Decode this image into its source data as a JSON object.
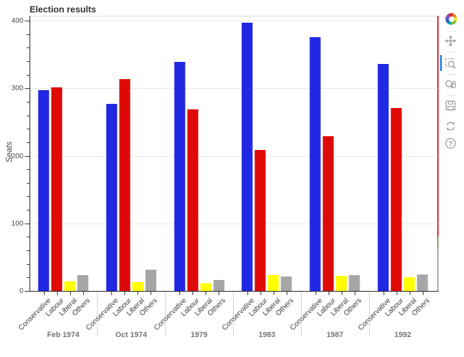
{
  "title": "Election results",
  "y_axis": {
    "label": "Seats",
    "ticks": [
      0,
      100,
      200,
      300,
      400
    ],
    "minor_tick_step": 20
  },
  "x_axis": {
    "groups": [
      "Feb 1974",
      "Oct 1974",
      "1979",
      "1983",
      "1987",
      "1992"
    ],
    "categories": [
      "Conservative",
      "Labour",
      "Liberal",
      "Others"
    ]
  },
  "chart_data": {
    "type": "bar",
    "title": "Election results",
    "xlabel": "",
    "ylabel": "Seats",
    "ylim": [
      0,
      407
    ],
    "grid": true,
    "legend": false,
    "groups": [
      "Feb 1974",
      "Oct 1974",
      "1979",
      "1983",
      "1987",
      "1992"
    ],
    "categories": [
      "Conservative",
      "Labour",
      "Liberal",
      "Others"
    ],
    "series": [
      {
        "name": "Conservative",
        "color": "#2128e2",
        "values": [
          297,
          277,
          339,
          397,
          376,
          336
        ]
      },
      {
        "name": "Labour",
        "color": "#de0a08",
        "values": [
          301,
          313,
          269,
          209,
          229,
          271
        ]
      },
      {
        "name": "Liberal",
        "color": "#ffff00",
        "values": [
          14,
          13,
          11,
          23,
          22,
          20
        ]
      },
      {
        "name": "Others",
        "color": "#a6a6a6",
        "values": [
          23,
          32,
          16,
          21,
          23,
          24
        ]
      }
    ]
  },
  "toolbar": {
    "logo": "bokeh-logo",
    "tools": [
      "pan",
      "box-zoom",
      "wheel-zoom",
      "save",
      "reset",
      "help"
    ],
    "active_tool": "box-zoom"
  },
  "colors": {
    "active_tool_indicator": "#2b9af3",
    "right_edge_line": "#ed1c24",
    "grid_line": "#e6e6e6",
    "axis_line": "#222222",
    "tick_label": "#444444",
    "group_label": "#757575",
    "title": "#333333",
    "toolbar_icon": "#9a9a9a"
  }
}
